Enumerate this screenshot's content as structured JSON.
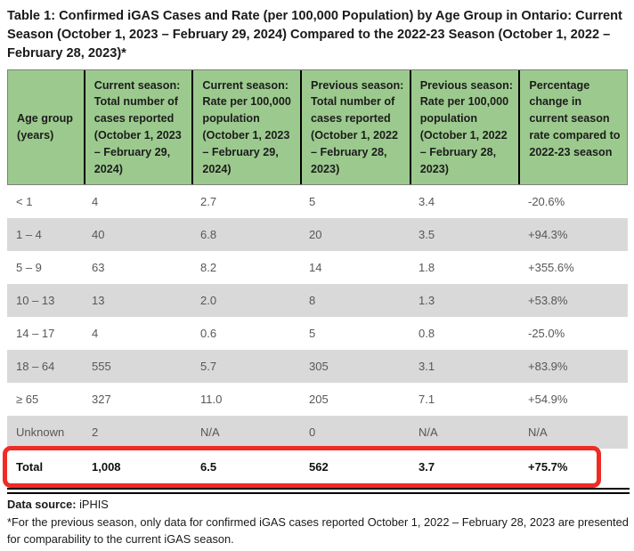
{
  "title": "Table 1: Confirmed iGAS Cases and Rate (per 100,000 Population) by Age Group in Ontario: Current Season (October 1, 2023 – February 29, 2024) Compared to the 2022-23 Season (October 1, 2022 – February 28, 2023)*",
  "table": {
    "columns": [
      "Age group (years)",
      "Current season: Total number of cases reported (October 1, 2023 – February 29, 2024)",
      "Current season: Rate per 100,000 population (October 1, 2023 – February 29, 2024)",
      "Previous season: Total number of cases reported (October 1, 2022 – February 28, 2023)",
      "Previous season: Rate per 100,000 population (October 1, 2022 – February 28, 2023)",
      "Percentage change in current season rate compared to 2022-23 season"
    ],
    "rows": [
      [
        "< 1",
        "4",
        "2.7",
        "5",
        "3.4",
        "-20.6%"
      ],
      [
        "1 – 4",
        "40",
        "6.8",
        "20",
        "3.5",
        "+94.3%"
      ],
      [
        "5 – 9",
        "63",
        "8.2",
        "14",
        "1.8",
        "+355.6%"
      ],
      [
        "10 – 13",
        "13",
        "2.0",
        "8",
        "1.3",
        "+53.8%"
      ],
      [
        "14 – 17",
        "4",
        "0.6",
        "5",
        "0.8",
        "-25.0%"
      ],
      [
        "18 – 64",
        "555",
        "5.7",
        "305",
        "3.1",
        "+83.9%"
      ],
      [
        "≥ 65",
        "327",
        "11.0",
        "205",
        "7.1",
        "+54.9%"
      ],
      [
        "Unknown",
        "2",
        "N/A",
        "0",
        "N/A",
        "N/A"
      ]
    ],
    "total_row": [
      "Total",
      "1,008",
      "6.5",
      "562",
      "3.7",
      "+75.7%"
    ]
  },
  "footer": {
    "data_source_label": "Data source:",
    "data_source_value": "iPHIS",
    "footnote": "*For the previous season, only data for confirmed iGAS cases reported October 1, 2022 – February 28, 2023 are presented for comparability to the current iGAS season."
  },
  "colors": {
    "header_bg": "#9cca8e",
    "row_alt_bg": "#d9d9d9",
    "highlight": "#ee2c24"
  }
}
